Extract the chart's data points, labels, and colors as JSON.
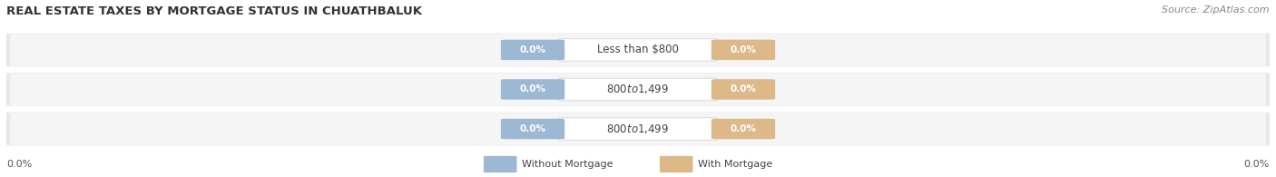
{
  "title": "REAL ESTATE TAXES BY MORTGAGE STATUS IN CHUATHBALUK",
  "source": "Source: ZipAtlas.com",
  "categories": [
    "Less than $800",
    "$800 to $1,499",
    "$800 to $1,499"
  ],
  "without_mortgage": [
    0.0,
    0.0,
    0.0
  ],
  "with_mortgage": [
    0.0,
    0.0,
    0.0
  ],
  "bar_color_without": "#9db8d2",
  "bar_color_with": "#ddb98a",
  "bg_color": "#ffffff",
  "row_bg_color": "#e8e8e8",
  "axis_label_left": "0.0%",
  "axis_label_right": "0.0%",
  "legend_without": "Without Mortgage",
  "legend_with": "With Mortgage",
  "title_fontsize": 9.5,
  "source_fontsize": 8,
  "label_fontsize": 7.5,
  "category_fontsize": 8.5
}
